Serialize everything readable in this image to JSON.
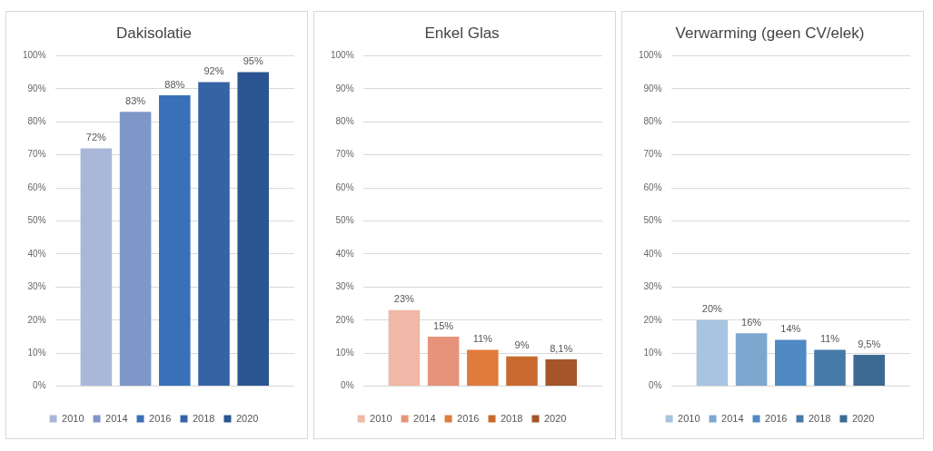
{
  "chart_data": [
    {
      "type": "bar",
      "title": "Dakisolatie",
      "categories": [
        null
      ],
      "ylim": [
        0,
        100
      ],
      "yticks": [
        {
          "value": 0,
          "label": "0%"
        },
        {
          "value": 10,
          "label": "10%"
        },
        {
          "value": 20,
          "label": "20%"
        },
        {
          "value": 30,
          "label": "30%"
        },
        {
          "value": 40,
          "label": "40%"
        },
        {
          "value": 50,
          "label": "50%"
        },
        {
          "value": 60,
          "label": "60%"
        },
        {
          "value": 70,
          "label": "70%"
        },
        {
          "value": 80,
          "label": "80%"
        },
        {
          "value": 90,
          "label": "90%"
        },
        {
          "value": 100,
          "label": "100%"
        }
      ],
      "grid": "y",
      "legend": "bottom",
      "series": [
        {
          "name": "2010",
          "color": "#a9b8d9",
          "values": [
            72
          ],
          "value_labels": [
            "72%"
          ]
        },
        {
          "name": "2014",
          "color": "#7f96c8",
          "values": [
            83
          ],
          "value_labels": [
            "83%"
          ]
        },
        {
          "name": "2016",
          "color": "#3a70b8",
          "values": [
            88
          ],
          "value_labels": [
            "88%"
          ]
        },
        {
          "name": "2018",
          "color": "#3563a6",
          "values": [
            92
          ],
          "value_labels": [
            "92%"
          ]
        },
        {
          "name": "2020",
          "color": "#2a5590",
          "values": [
            95
          ],
          "value_labels": [
            "95%"
          ]
        }
      ]
    },
    {
      "type": "bar",
      "title": "Enkel Glas",
      "categories": [
        null
      ],
      "ylim": [
        0,
        100
      ],
      "yticks": [
        {
          "value": 0,
          "label": "0%"
        },
        {
          "value": 10,
          "label": "10%"
        },
        {
          "value": 20,
          "label": "20%"
        },
        {
          "value": 30,
          "label": "30%"
        },
        {
          "value": 40,
          "label": "40%"
        },
        {
          "value": 50,
          "label": "50%"
        },
        {
          "value": 60,
          "label": "60%"
        },
        {
          "value": 70,
          "label": "70%"
        },
        {
          "value": 80,
          "label": "80%"
        },
        {
          "value": 90,
          "label": "90%"
        },
        {
          "value": 100,
          "label": "100%"
        }
      ],
      "grid": "y",
      "legend": "bottom",
      "series": [
        {
          "name": "2010",
          "color": "#f0b8a6",
          "values": [
            23
          ],
          "value_labels": [
            "23%"
          ]
        },
        {
          "name": "2014",
          "color": "#e5947a",
          "values": [
            15
          ],
          "value_labels": [
            "15%"
          ]
        },
        {
          "name": "2016",
          "color": "#e07b3c",
          "values": [
            11
          ],
          "value_labels": [
            "11%"
          ]
        },
        {
          "name": "2018",
          "color": "#c96a30",
          "values": [
            9
          ],
          "value_labels": [
            "9%"
          ]
        },
        {
          "name": "2020",
          "color": "#a4552a",
          "values": [
            8.1
          ],
          "value_labels": [
            "8,1%"
          ]
        }
      ]
    },
    {
      "type": "bar",
      "title": "Verwarming (geen CV/elek)",
      "categories": [
        null
      ],
      "ylim": [
        0,
        100
      ],
      "yticks": [
        {
          "value": 0,
          "label": "0%"
        },
        {
          "value": 10,
          "label": "10%"
        },
        {
          "value": 20,
          "label": "20%"
        },
        {
          "value": 30,
          "label": "30%"
        },
        {
          "value": 40,
          "label": "40%"
        },
        {
          "value": 50,
          "label": "50%"
        },
        {
          "value": 60,
          "label": "60%"
        },
        {
          "value": 70,
          "label": "70%"
        },
        {
          "value": 80,
          "label": "80%"
        },
        {
          "value": 90,
          "label": "90%"
        },
        {
          "value": 100,
          "label": "100%"
        }
      ],
      "grid": "y",
      "legend": "bottom",
      "series": [
        {
          "name": "2010",
          "color": "#a8c4e0",
          "values": [
            20
          ],
          "value_labels": [
            "20%"
          ]
        },
        {
          "name": "2014",
          "color": "#7ea7d0",
          "values": [
            16
          ],
          "value_labels": [
            "16%"
          ]
        },
        {
          "name": "2016",
          "color": "#4f8ac4",
          "values": [
            14
          ],
          "value_labels": [
            "14%"
          ]
        },
        {
          "name": "2018",
          "color": "#4679a8",
          "values": [
            11
          ],
          "value_labels": [
            "11%"
          ]
        },
        {
          "name": "2020",
          "color": "#3d6a92",
          "values": [
            9.5
          ],
          "value_labels": [
            "9,5%"
          ]
        }
      ]
    }
  ]
}
